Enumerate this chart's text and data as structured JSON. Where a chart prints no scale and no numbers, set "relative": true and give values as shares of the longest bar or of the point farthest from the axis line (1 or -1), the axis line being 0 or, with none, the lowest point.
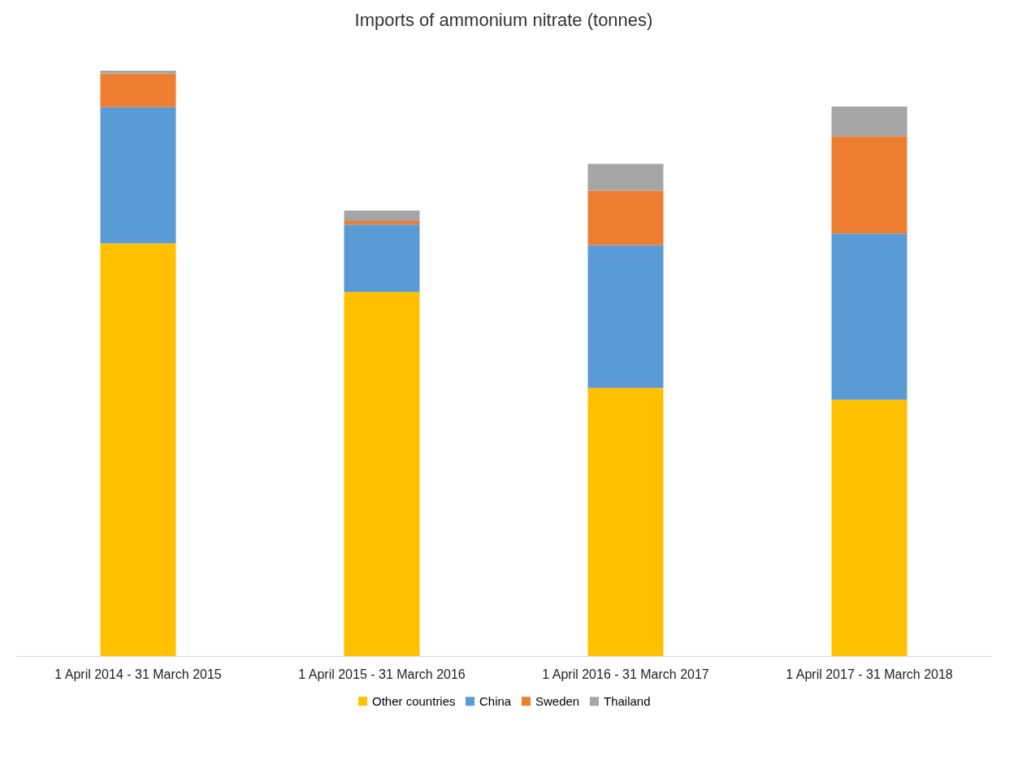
{
  "chart_data": {
    "type": "bar",
    "title": "Imports of ammonium nitrate (tonnes)",
    "categories": [
      "1 April 2014 - 31 March 2015",
      "1 April 2015 - 31 March 2016",
      "1 April 2016 - 31 March 2017",
      "1 April 2017 - 31 March 2018"
    ],
    "stacked": true,
    "relative": true,
    "legend": "bottom",
    "series": [
      {
        "name": "Other countries",
        "color": "#ffc000",
        "values": [
          0.705,
          0.622,
          0.458,
          0.438
        ]
      },
      {
        "name": "China",
        "color": "#5b9bd5",
        "values": [
          0.233,
          0.115,
          0.244,
          0.284
        ]
      },
      {
        "name": "Sweden",
        "color": "#ed7d31",
        "values": [
          0.057,
          0.006,
          0.093,
          0.166
        ]
      },
      {
        "name": "Thailand",
        "color": "#a5a5a5",
        "values": [
          0.005,
          0.018,
          0.046,
          0.051
        ]
      }
    ]
  }
}
